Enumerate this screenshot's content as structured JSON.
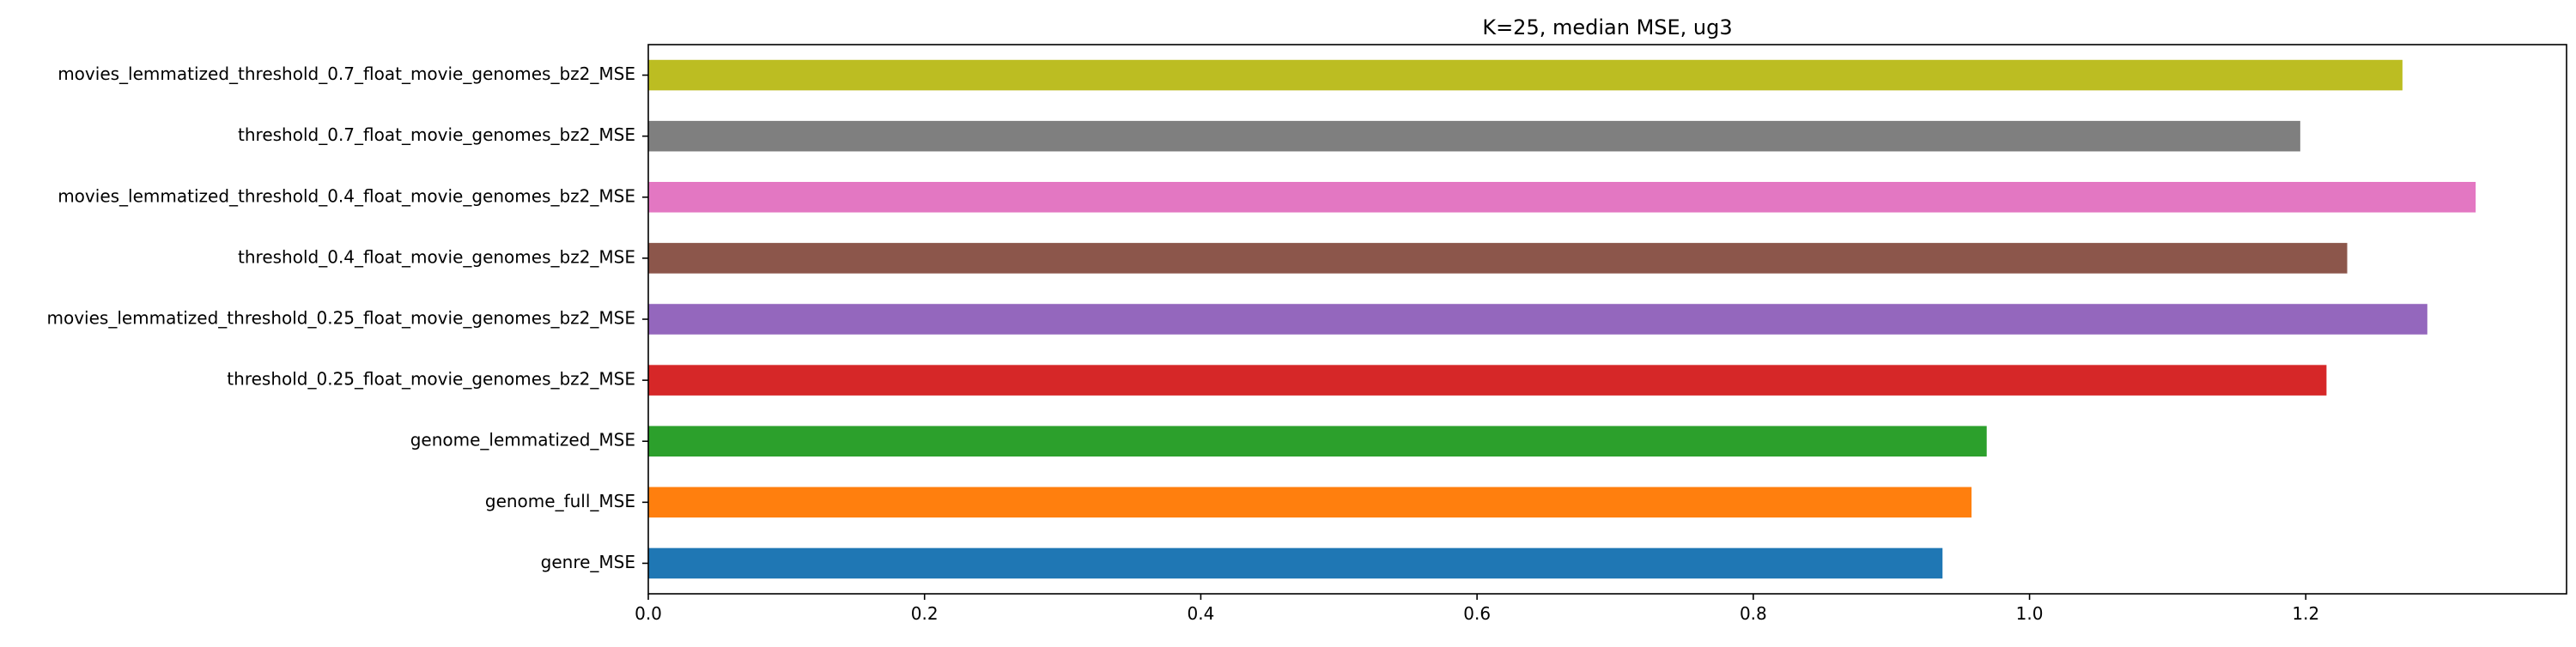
{
  "chart_data": {
    "type": "bar",
    "orientation": "horizontal",
    "title": "K=25, median MSE, ug3",
    "xlabel": "",
    "ylabel": "",
    "xlim": [
      0.0,
      1.3888
    ],
    "x_ticks": [
      0.0,
      0.2,
      0.4,
      0.6,
      0.8,
      1.0,
      1.2
    ],
    "x_tick_labels": [
      "0.0",
      "0.2",
      "0.4",
      "0.6",
      "0.8",
      "1.0",
      "1.2"
    ],
    "grid": false,
    "legend": "none",
    "categories": [
      "genre_MSE",
      "genome_full_MSE",
      "genome_lemmatized_MSE",
      "threshold_0.25_float_movie_genomes_bz2_MSE",
      "movies_lemmatized_threshold_0.25_float_movie_genomes_bz2_MSE",
      "threshold_0.4_float_movie_genomes_bz2_MSE",
      "movies_lemmatized_threshold_0.4_float_movie_genomes_bz2_MSE",
      "threshold_0.7_float_movie_genomes_bz2_MSE",
      "movies_lemmatized_threshold_0.7_float_movie_genomes_bz2_MSE"
    ],
    "values": [
      0.937,
      0.958,
      0.969,
      1.215,
      1.288,
      1.23,
      1.323,
      1.196,
      1.27
    ],
    "colors": [
      "#1f77b4",
      "#ff7f0e",
      "#2ca02c",
      "#d62728",
      "#9467bd",
      "#8c564b",
      "#e377c2",
      "#7f7f7f",
      "#bcbd22"
    ]
  }
}
